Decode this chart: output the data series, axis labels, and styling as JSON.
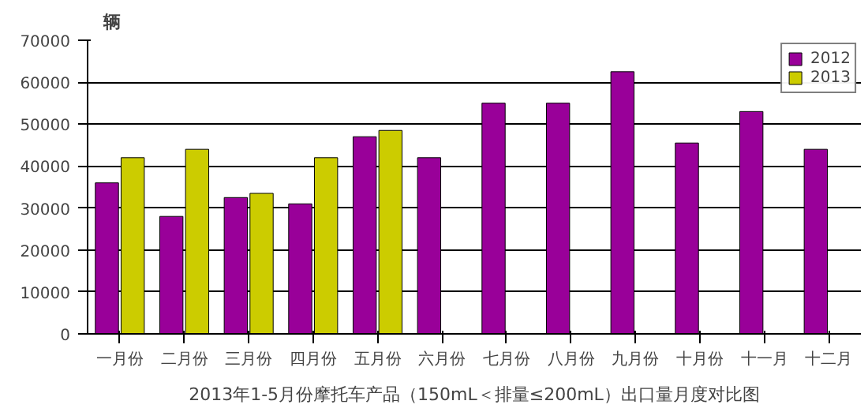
{
  "chart_data": {
    "type": "bar",
    "title": "2013年1-5月份摩托车产品（150mL＜排量≤200mL）出口量月度对比图",
    "ylabel": "辆",
    "categories": [
      "一月份",
      "二月份",
      "三月份",
      "四月份",
      "五月份",
      "六月份",
      "七月份",
      "八月份",
      "九月份",
      "十月份",
      "十一月",
      "十二月"
    ],
    "series": [
      {
        "name": "2012",
        "color": "#990099",
        "values": [
          36000,
          28000,
          32500,
          31000,
          47000,
          42000,
          55000,
          55000,
          62500,
          45500,
          53000,
          44000
        ]
      },
      {
        "name": "2013",
        "color": "#cccc00",
        "values": [
          42000,
          44000,
          33500,
          42000,
          48500,
          null,
          null,
          null,
          null,
          null,
          null,
          null
        ]
      }
    ],
    "ylim": [
      0,
      70000
    ],
    "yticks": [
      0,
      10000,
      20000,
      30000,
      40000,
      50000,
      60000,
      70000
    ],
    "grid": "y",
    "legend": "top right"
  }
}
